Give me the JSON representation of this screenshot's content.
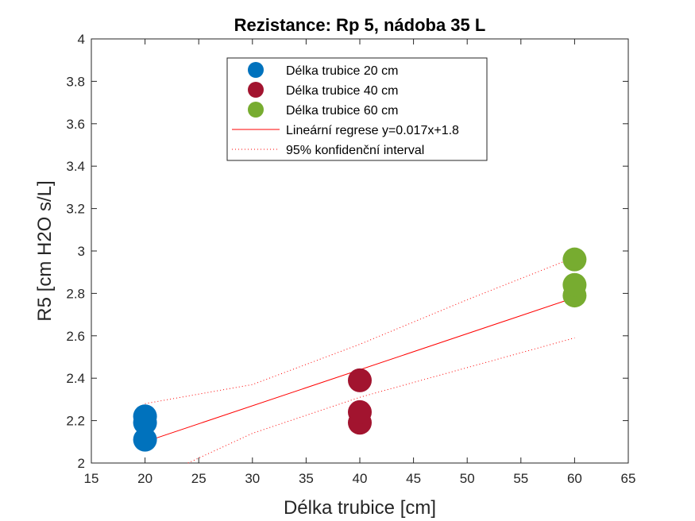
{
  "chart_data": {
    "type": "scatter",
    "title": "Rezistance: Rp 5, nádoba 35 L",
    "xlabel": "Délka trubice [cm]",
    "ylabel": "R5 [cm H2O s/L]",
    "xlim": [
      15,
      65
    ],
    "ylim": [
      2,
      4
    ],
    "xticks": [
      15,
      20,
      25,
      30,
      35,
      40,
      45,
      50,
      55,
      60,
      65
    ],
    "yticks": [
      2,
      2.2,
      2.4,
      2.6,
      2.8,
      3,
      3.2,
      3.4,
      3.6,
      3.8,
      4
    ],
    "grid": false,
    "legend_position": "top-center",
    "series": [
      {
        "name": "Délka trubice 20 cm",
        "color": "#0072BD",
        "points": [
          [
            20,
            2.11
          ],
          [
            20,
            2.19
          ],
          [
            20,
            2.22
          ]
        ]
      },
      {
        "name": "Délka trubice 40 cm",
        "color": "#A2142F",
        "points": [
          [
            40,
            2.19
          ],
          [
            40,
            2.24
          ],
          [
            40,
            2.39
          ]
        ]
      },
      {
        "name": "Délka trubice 60 cm",
        "color": "#77AC30",
        "points": [
          [
            60,
            2.79
          ],
          [
            60,
            2.84
          ],
          [
            60,
            2.96
          ]
        ]
      }
    ],
    "regression": {
      "name": "Lineární regrese y=0.017x+1.8",
      "color": "#FF0000",
      "points": [
        [
          20,
          2.1
        ],
        [
          60,
          2.78
        ]
      ]
    },
    "confidence_interval": {
      "name": "95% konfidenční interval",
      "color": "#FF0000",
      "upper": [
        [
          20,
          2.28
        ],
        [
          30,
          2.37
        ],
        [
          40,
          2.56
        ],
        [
          50,
          2.77
        ],
        [
          60,
          2.97
        ]
      ],
      "lower": [
        [
          24,
          2.0
        ],
        [
          30,
          2.14
        ],
        [
          40,
          2.31
        ],
        [
          50,
          2.45
        ],
        [
          60,
          2.59
        ]
      ]
    }
  }
}
